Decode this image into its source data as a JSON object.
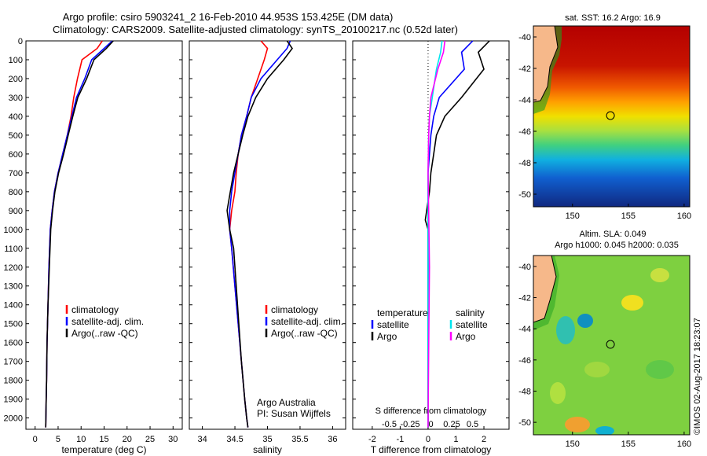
{
  "header": {
    "line1": "Argo profile: csiro 5903241_2 16-Feb-2010 44.953S 153.425E (DM data)",
    "line2": "Climatology: CARS2009. Satellite-adjusted climatology: synTS_20100217.nc (0.52d later)"
  },
  "side_stamp": "©IMOS 02-Aug-2017 18:23:07",
  "colors": {
    "climatology": "#ff0000",
    "satellite": "#0000ff",
    "argo": "#000000",
    "argo_salinity": "#ff00ff",
    "sat_salinity": "#00e5ee"
  },
  "depth_ticks": [
    0,
    100,
    200,
    300,
    400,
    500,
    600,
    700,
    800,
    900,
    1000,
    1100,
    1200,
    1300,
    1400,
    1500,
    1600,
    1700,
    1800,
    1900,
    2000
  ],
  "chart_data": [
    {
      "type": "line",
      "name": "temperature-profile",
      "xlabel": "temperature (deg C)",
      "x_ticks": [
        "0",
        "5",
        "10",
        "15",
        "20",
        "25",
        "30"
      ],
      "xlim": [
        -2,
        32
      ],
      "ylim": [
        0,
        2060
      ],
      "legend": [
        "climatology",
        "satellite-adj. clim.",
        "Argo(..raw -QC)"
      ],
      "legend_position": "lower-right",
      "series": [
        {
          "name": "climatology",
          "x": [
            14.6,
            13.5,
            10.2,
            9.2,
            8.4,
            7.8,
            7.0,
            6.0,
            5.0,
            4.2,
            3.7,
            3.3,
            3.0,
            2.8,
            2.6,
            2.5,
            2.4,
            2.3
          ],
          "y": [
            0,
            40,
            100,
            200,
            300,
            400,
            500,
            600,
            700,
            800,
            900,
            1000,
            1200,
            1400,
            1600,
            1800,
            1900,
            2050
          ]
        },
        {
          "name": "satellite-adj. clim.",
          "x": [
            16.8,
            15.0,
            12.3,
            10.8,
            9.0,
            8.0,
            7.0,
            6.0,
            5.0,
            4.2,
            3.7,
            3.3,
            3.0,
            2.8,
            2.6,
            2.5,
            2.4,
            2.3
          ],
          "y": [
            0,
            40,
            100,
            200,
            300,
            400,
            500,
            600,
            700,
            800,
            900,
            1000,
            1200,
            1400,
            1600,
            1800,
            1900,
            2050
          ]
        },
        {
          "name": "Argo(..raw -QC)",
          "x": [
            17.0,
            15.5,
            12.8,
            11.2,
            9.3,
            8.2,
            7.2,
            6.2,
            5.1,
            4.3,
            3.8,
            3.4,
            3.1,
            2.8,
            2.6,
            2.5,
            2.4,
            2.3
          ],
          "y": [
            0,
            40,
            100,
            200,
            300,
            400,
            500,
            600,
            700,
            800,
            900,
            1000,
            1200,
            1400,
            1600,
            1800,
            1900,
            2050
          ]
        }
      ]
    },
    {
      "type": "line",
      "name": "salinity-profile",
      "xlabel": "salinity",
      "x_ticks": [
        "34",
        "34.5",
        "35",
        "35.5",
        "36"
      ],
      "xlim": [
        33.8,
        36.2
      ],
      "ylim": [
        0,
        2060
      ],
      "legend": [
        "climatology",
        "satellite-adj. clim.",
        "Argo(..raw -QC)"
      ],
      "legend_position": "lower-right",
      "annotation": [
        "Argo Australia",
        "PI: Susan Wijffels"
      ],
      "series": [
        {
          "name": "climatology",
          "x": [
            34.9,
            35.0,
            34.95,
            34.85,
            34.75,
            34.68,
            34.6,
            34.55,
            34.52,
            34.5,
            34.45,
            34.42,
            34.45,
            34.5,
            34.55,
            34.6,
            34.65,
            34.68,
            34.7
          ],
          "y": [
            0,
            40,
            100,
            200,
            300,
            400,
            500,
            600,
            700,
            800,
            900,
            1000,
            1100,
            1300,
            1500,
            1700,
            1900,
            2000,
            2050
          ]
        },
        {
          "name": "satellite-adj. clim.",
          "x": [
            35.35,
            35.3,
            35.15,
            34.9,
            34.75,
            34.68,
            34.6,
            34.55,
            34.5,
            34.45,
            34.42,
            34.42,
            34.45,
            34.5,
            34.55,
            34.6,
            34.65,
            34.68,
            34.7
          ],
          "y": [
            0,
            40,
            100,
            200,
            300,
            400,
            500,
            600,
            700,
            800,
            900,
            1000,
            1100,
            1300,
            1500,
            1700,
            1900,
            2000,
            2050
          ]
        },
        {
          "name": "Argo(..raw -QC)",
          "x": [
            35.3,
            35.38,
            35.25,
            35.0,
            34.82,
            34.7,
            34.62,
            34.55,
            34.48,
            34.43,
            34.38,
            34.42,
            34.48,
            34.52,
            34.56,
            34.6,
            34.65,
            34.68,
            34.7
          ],
          "y": [
            0,
            40,
            100,
            200,
            300,
            400,
            500,
            600,
            700,
            800,
            900,
            1000,
            1100,
            1300,
            1500,
            1700,
            1900,
            2000,
            2050
          ]
        }
      ]
    },
    {
      "type": "line",
      "name": "difference-profile",
      "xlabel": "T difference from climatology",
      "x_ticks": [
        "-2",
        "-1",
        "0",
        "1",
        "2"
      ],
      "xlim": [
        -2.7,
        2.9
      ],
      "top_axis_label": "S difference from climatology",
      "top_axis_ticks": [
        "-0.5",
        "-0.25",
        "0",
        "0.25",
        "0.5"
      ],
      "ylim": [
        0,
        2060
      ],
      "legend_groups": [
        {
          "title": "temperature",
          "items": [
            "satellite",
            "Argo"
          ]
        },
        {
          "title": "salinity",
          "items": [
            "satellite",
            "Argo"
          ]
        }
      ],
      "series": [
        {
          "name": "temperature satellite",
          "x": [
            1.6,
            1.2,
            1.3,
            0.4,
            0.2,
            0.1,
            0.05,
            0.0,
            0.0,
            0.0,
            0.0,
            0.0,
            0.0,
            0.0
          ],
          "y": [
            0,
            60,
            150,
            300,
            400,
            500,
            600,
            700,
            800,
            900,
            1000,
            1200,
            1500,
            2050
          ]
        },
        {
          "name": "temperature Argo",
          "x": [
            2.2,
            1.8,
            2.0,
            1.2,
            0.6,
            0.3,
            0.2,
            0.1,
            0.05,
            -0.1,
            0.0,
            0.0,
            0.0,
            0.0
          ],
          "y": [
            0,
            60,
            150,
            300,
            400,
            500,
            600,
            700,
            800,
            950,
            1000,
            1200,
            1500,
            2050
          ]
        },
        {
          "name": "salinity satellite",
          "x": [
            0.5,
            0.45,
            0.3,
            0.15,
            0.05,
            0.02,
            0.0,
            0.0,
            0.0,
            0.0,
            0.0
          ],
          "y": [
            0,
            60,
            150,
            300,
            400,
            500,
            700,
            900,
            1200,
            1500,
            2050
          ]
        },
        {
          "name": "salinity Argo",
          "x": [
            0.6,
            0.55,
            0.35,
            0.1,
            0.05,
            0.02,
            0.0,
            0.02,
            0.05,
            0.03,
            0.0
          ],
          "y": [
            0,
            60,
            150,
            300,
            400,
            500,
            700,
            900,
            1200,
            1500,
            2050
          ]
        }
      ]
    },
    {
      "type": "heatmap",
      "name": "sst-map",
      "title": "sat. SST: 16.2 Argo: 16.9",
      "x_ticks": [
        "150",
        "155",
        "160"
      ],
      "y_ticks": [
        "-40",
        "-42",
        "-44",
        "-46",
        "-48",
        "-50"
      ],
      "xlim": [
        146.5,
        160.5
      ],
      "ylim": [
        -50.8,
        -39.3
      ],
      "marker": {
        "lon": 153.4,
        "lat": -45.0
      }
    },
    {
      "type": "heatmap",
      "name": "sla-map",
      "title_lines": [
        "Altim. SLA: 0.049",
        "Argo h1000: 0.045 h2000: 0.035"
      ],
      "x_ticks": [
        "150",
        "155",
        "160"
      ],
      "y_ticks": [
        "-40",
        "-42",
        "-44",
        "-46",
        "-48",
        "-50"
      ],
      "xlim": [
        146.5,
        160.5
      ],
      "ylim": [
        -50.8,
        -39.3
      ],
      "marker": {
        "lon": 153.4,
        "lat": -45.0
      }
    }
  ]
}
